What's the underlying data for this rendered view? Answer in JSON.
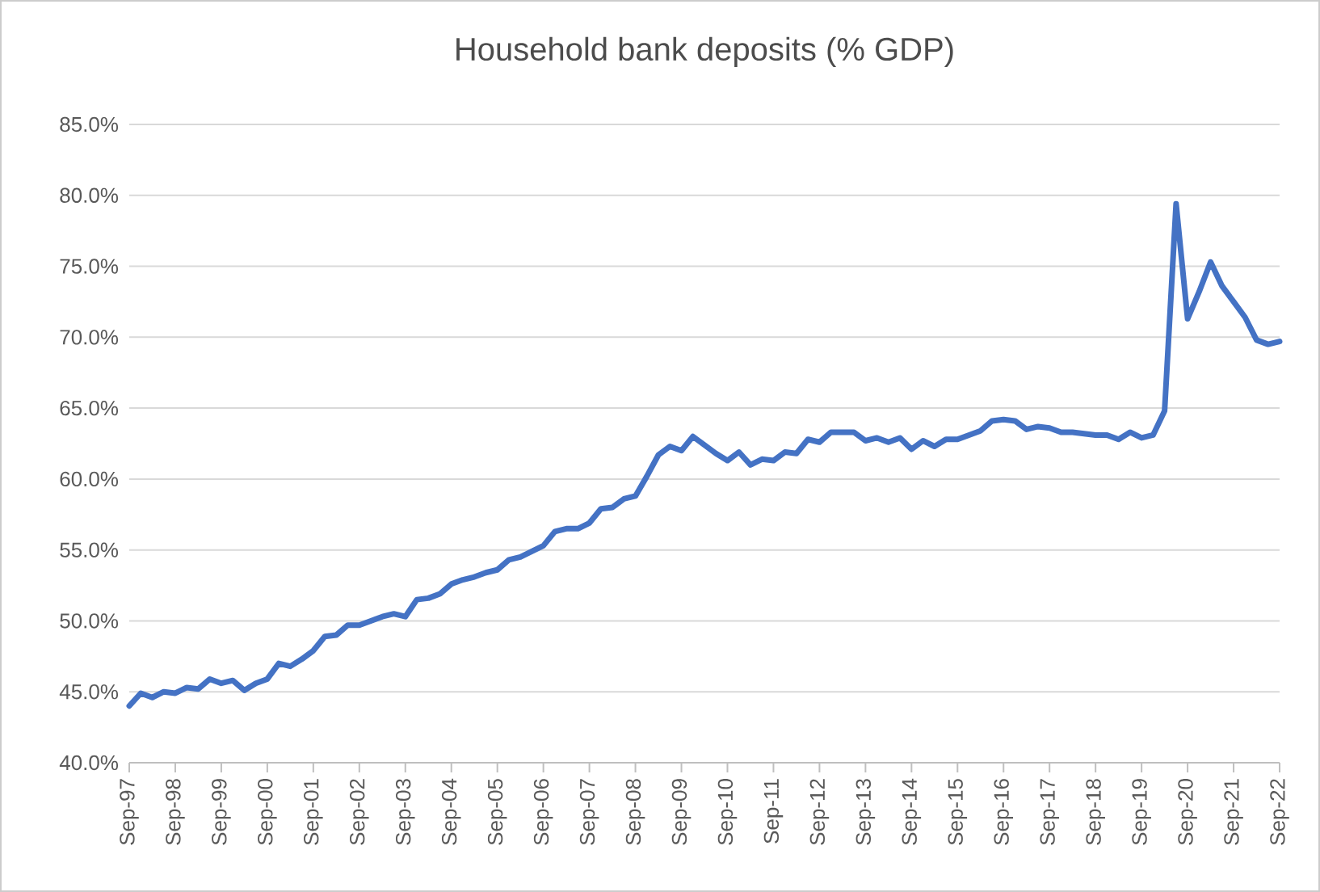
{
  "chart_data": {
    "type": "line",
    "title": "Household bank deposits (% GDP)",
    "categories": [
      "Sep-97",
      null,
      null,
      null,
      "Sep-98",
      null,
      null,
      null,
      "Sep-99",
      null,
      null,
      null,
      "Sep-00",
      null,
      null,
      null,
      "Sep-01",
      null,
      null,
      null,
      "Sep-02",
      null,
      null,
      null,
      "Sep-03",
      null,
      null,
      null,
      "Sep-04",
      null,
      null,
      null,
      "Sep-05",
      null,
      null,
      null,
      "Sep-06",
      null,
      null,
      null,
      "Sep-07",
      null,
      null,
      null,
      "Sep-08",
      null,
      null,
      null,
      "Sep-09",
      null,
      null,
      null,
      "Sep-10",
      null,
      null,
      null,
      "Sep-11",
      null,
      null,
      null,
      "Sep-12",
      null,
      null,
      null,
      "Sep-13",
      null,
      null,
      null,
      "Sep-14",
      null,
      null,
      null,
      "Sep-15",
      null,
      null,
      null,
      "Sep-16",
      null,
      null,
      null,
      "Sep-17",
      null,
      null,
      null,
      "Sep-18",
      null,
      null,
      null,
      "Sep-19",
      null,
      null,
      null,
      "Sep-20",
      null,
      null,
      null,
      "Sep-21",
      null,
      null,
      null,
      "Sep-22"
    ],
    "series": [
      {
        "color": "#4472c4",
        "values": [
          44.0,
          44.9,
          44.6,
          45.0,
          44.9,
          45.3,
          45.2,
          45.9,
          45.6,
          45.8,
          45.1,
          45.6,
          45.9,
          47.0,
          46.8,
          47.3,
          47.9,
          48.9,
          49.0,
          49.7,
          49.7,
          50.0,
          50.3,
          50.5,
          50.3,
          51.5,
          51.6,
          51.9,
          52.6,
          52.9,
          53.1,
          53.4,
          53.6,
          54.3,
          54.5,
          54.9,
          55.3,
          56.3,
          56.5,
          56.5,
          56.9,
          57.9,
          58.0,
          58.6,
          58.8,
          60.2,
          61.7,
          62.3,
          62.0,
          63.0,
          62.4,
          61.8,
          61.3,
          61.9,
          61.0,
          61.4,
          61.3,
          61.9,
          61.8,
          62.8,
          62.6,
          63.3,
          63.3,
          63.3,
          62.7,
          62.9,
          62.6,
          62.9,
          62.1,
          62.7,
          62.3,
          62.8,
          62.8,
          63.1,
          63.4,
          64.1,
          64.2,
          64.1,
          63.5,
          63.7,
          63.6,
          63.3,
          63.3,
          63.2,
          63.1,
          63.1,
          62.8,
          63.3,
          62.9,
          63.1,
          64.8,
          79.4,
          71.3,
          73.2,
          75.3,
          73.6,
          72.5,
          71.4,
          69.8,
          69.5,
          69.7
        ]
      }
    ],
    "ylim": [
      40,
      85
    ],
    "yticks": [
      {
        "value": 40,
        "label": "40.0%"
      },
      {
        "value": 45,
        "label": "45.0%"
      },
      {
        "value": 50,
        "label": "50.0%"
      },
      {
        "value": 55,
        "label": "55.0%"
      },
      {
        "value": 60,
        "label": "60.0%"
      },
      {
        "value": 65,
        "label": "65.0%"
      },
      {
        "value": 70,
        "label": "70.0%"
      },
      {
        "value": 75,
        "label": "75.0%"
      },
      {
        "value": 80,
        "label": "80.0%"
      },
      {
        "value": 85,
        "label": "85.0%"
      }
    ],
    "grid": "y",
    "marker": "none",
    "line_style": "solid"
  }
}
